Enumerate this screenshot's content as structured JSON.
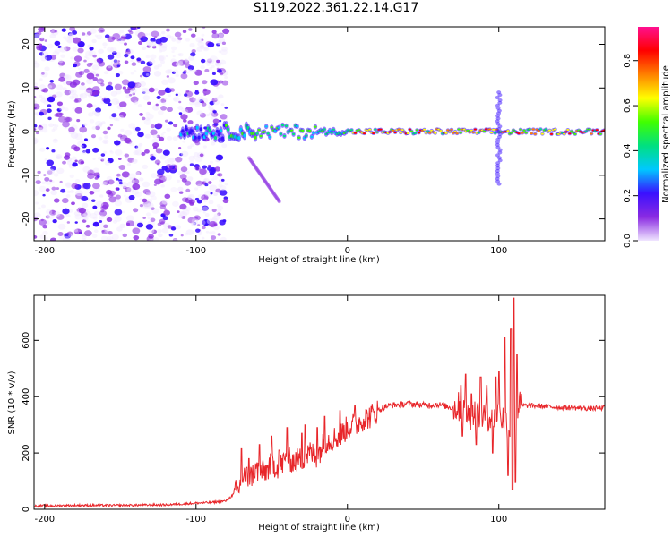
{
  "title": "S119.2022.361.22.14.G17",
  "chart_data": [
    {
      "type": "heatmap",
      "xlabel": "Height of straight line (km)",
      "ylabel": "Frequency (Hz)",
      "xlim": [
        -207,
        170
      ],
      "ylim": [
        -25,
        24
      ],
      "xticks": [
        -200,
        -100,
        0,
        100
      ],
      "yticks": [
        -20,
        -10,
        0,
        10,
        20
      ],
      "colorbar": {
        "label": "Normalized spectral amplitude",
        "range": [
          0,
          0.95
        ],
        "ticks": [
          "0.0",
          "0.2",
          "0.4",
          "0.6",
          "0.8"
        ],
        "colors": [
          "#f0e6ff",
          "#8a2be2",
          "#3a10ff",
          "#00c8ff",
          "#00e080",
          "#40ff00",
          "#ffff00",
          "#ff8000",
          "#ff0000",
          "#ff1090"
        ]
      },
      "features": {
        "noise_region_x": [
          -207,
          -80
        ],
        "ridge_start_x": -110,
        "ridge_center_hz": 0,
        "spike_x": 100,
        "spike_freq_range": [
          -12,
          9
        ],
        "branch_x": [
          -65,
          -45
        ],
        "branch_freq": [
          -6,
          -16
        ]
      }
    },
    {
      "type": "line",
      "xlabel": "Height of straight line (km)",
      "ylabel": "SNR (10 * v/v)",
      "xlim": [
        -207,
        170
      ],
      "ylim": [
        0,
        760
      ],
      "xticks": [
        -200,
        -100,
        0,
        100
      ],
      "yticks": [
        0,
        200,
        400,
        600
      ],
      "series": [
        {
          "color": "#e8262a",
          "points": [
            [
              -207,
              12
            ],
            [
              -180,
              14
            ],
            [
              -150,
              14
            ],
            [
              -120,
              16
            ],
            [
              -100,
              22
            ],
            [
              -90,
              24
            ],
            [
              -80,
              30
            ],
            [
              -72,
              70
            ],
            [
              -68,
              120
            ],
            [
              -65,
              110
            ],
            [
              -60,
              140
            ],
            [
              -55,
              130
            ],
            [
              -50,
              160
            ],
            [
              -45,
              150
            ],
            [
              -40,
              180
            ],
            [
              -35,
              170
            ],
            [
              -30,
              180
            ],
            [
              -25,
              200
            ],
            [
              -20,
              190
            ],
            [
              -15,
              240
            ],
            [
              -10,
              250
            ],
            [
              -5,
              260
            ],
            [
              0,
              290
            ],
            [
              5,
              300
            ],
            [
              10,
              320
            ],
            [
              15,
              330
            ],
            [
              20,
              350
            ],
            [
              25,
              365
            ],
            [
              30,
              370
            ],
            [
              40,
              375
            ],
            [
              50,
              370
            ],
            [
              60,
              372
            ],
            [
              70,
              360
            ],
            [
              75,
              365
            ],
            [
              80,
              330
            ],
            [
              85,
              345
            ],
            [
              90,
              330
            ],
            [
              95,
              330
            ],
            [
              100,
              340
            ],
            [
              105,
              310
            ],
            [
              108,
              280
            ],
            [
              110,
              360
            ],
            [
              115,
              368
            ],
            [
              120,
              368
            ],
            [
              130,
              366
            ],
            [
              140,
              362
            ],
            [
              150,
              360
            ],
            [
              160,
              358
            ],
            [
              170,
              360
            ]
          ],
          "spikes": [
            [
              -70,
              215
            ],
            [
              -65,
              180
            ],
            [
              -58,
              230
            ],
            [
              -50,
              260
            ],
            [
              -45,
              210
            ],
            [
              -40,
              290
            ],
            [
              -30,
              270
            ],
            [
              -28,
              300
            ],
            [
              -20,
              290
            ],
            [
              -15,
              330
            ],
            [
              -5,
              350
            ],
            [
              5,
              370
            ],
            [
              75,
              440
            ],
            [
              78,
              480
            ],
            [
              82,
              410
            ],
            [
              88,
              470
            ],
            [
              92,
              440
            ],
            [
              98,
              470
            ],
            [
              100,
              490
            ],
            [
              104,
              610
            ],
            [
              108,
              640
            ],
            [
              110,
              750
            ],
            [
              112,
              550
            ],
            [
              76,
              260
            ],
            [
              85,
              230
            ],
            [
              96,
              200
            ],
            [
              106,
              120
            ],
            [
              109,
              70
            ],
            [
              111,
              95
            ]
          ]
        }
      ]
    }
  ]
}
